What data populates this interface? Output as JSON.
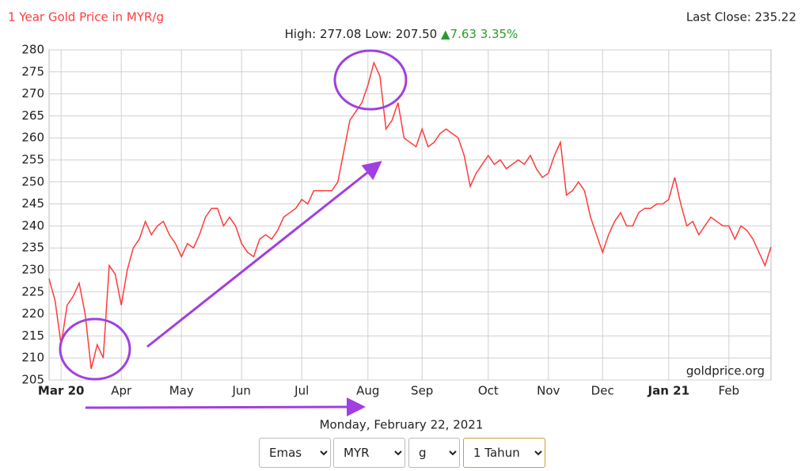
{
  "chart_data": {
    "type": "line",
    "title": "1 Year Gold Price in MYR/g",
    "last_close": "Last Close: 235.22",
    "subtitle": "High: 277.08 Low: 207.50",
    "change": "▲7.63 3.35%",
    "watermark": "goldprice.org",
    "date": "Monday, February 22, 2021",
    "color": "#ff3b3b",
    "grid": true,
    "ylim": [
      205,
      280
    ],
    "yticks": [
      205,
      210,
      215,
      220,
      225,
      230,
      235,
      240,
      245,
      250,
      255,
      260,
      265,
      270,
      275,
      280
    ],
    "categories": [
      null,
      null,
      "Mar 20",
      null,
      null,
      null,
      null,
      null,
      null,
      null,
      null,
      null,
      "Apr",
      null,
      null,
      null,
      null,
      null,
      null,
      null,
      null,
      null,
      "May",
      null,
      null,
      null,
      null,
      null,
      null,
      null,
      null,
      null,
      "Jun",
      null,
      null,
      null,
      null,
      null,
      null,
      null,
      null,
      null,
      "Jul",
      null,
      null,
      null,
      null,
      null,
      null,
      null,
      null,
      null,
      null,
      "Aug",
      null,
      null,
      null,
      null,
      null,
      null,
      null,
      null,
      "Sep",
      null,
      null,
      null,
      null,
      null,
      null,
      null,
      null,
      null,
      null,
      "Oct",
      null,
      null,
      null,
      null,
      null,
      null,
      null,
      null,
      null,
      "Nov",
      null,
      null,
      null,
      null,
      null,
      null,
      null,
      null,
      "Dec",
      null,
      null,
      null,
      null,
      null,
      null,
      null,
      null,
      null,
      null,
      "Jan 21",
      null,
      null,
      null,
      null,
      null,
      null,
      null,
      null,
      null,
      "Feb",
      null,
      null,
      null,
      null,
      null,
      null,
      null
    ],
    "values": [
      228,
      223,
      213,
      222,
      224,
      227,
      220,
      207.5,
      213,
      210,
      231,
      229,
      222,
      230,
      235,
      237,
      241,
      238,
      240,
      241,
      238,
      236,
      233,
      236,
      235,
      238,
      242,
      244,
      244,
      240,
      242,
      240,
      236,
      234,
      233,
      237,
      238,
      237,
      239,
      242,
      243,
      244,
      246,
      245,
      248,
      248,
      248,
      248,
      250,
      257,
      264,
      266,
      268,
      272,
      277.08,
      274,
      262,
      264,
      268,
      260,
      259,
      258,
      262,
      258,
      259,
      261,
      262,
      261,
      260,
      256,
      249,
      252,
      254,
      256,
      254,
      255,
      253,
      254,
      255,
      254,
      256,
      253,
      251,
      252,
      256,
      259,
      247,
      248,
      250,
      248,
      242,
      238,
      234,
      238,
      241,
      243,
      240,
      240,
      243,
      244,
      244,
      245,
      245,
      246,
      251,
      245,
      240,
      241,
      238,
      240,
      242,
      241,
      240,
      240,
      237,
      240,
      239,
      237,
      234,
      231,
      235.22
    ]
  },
  "controls": {
    "metal": "Emas",
    "currency": "MYR",
    "unit": "g",
    "period": "1 Tahun"
  }
}
